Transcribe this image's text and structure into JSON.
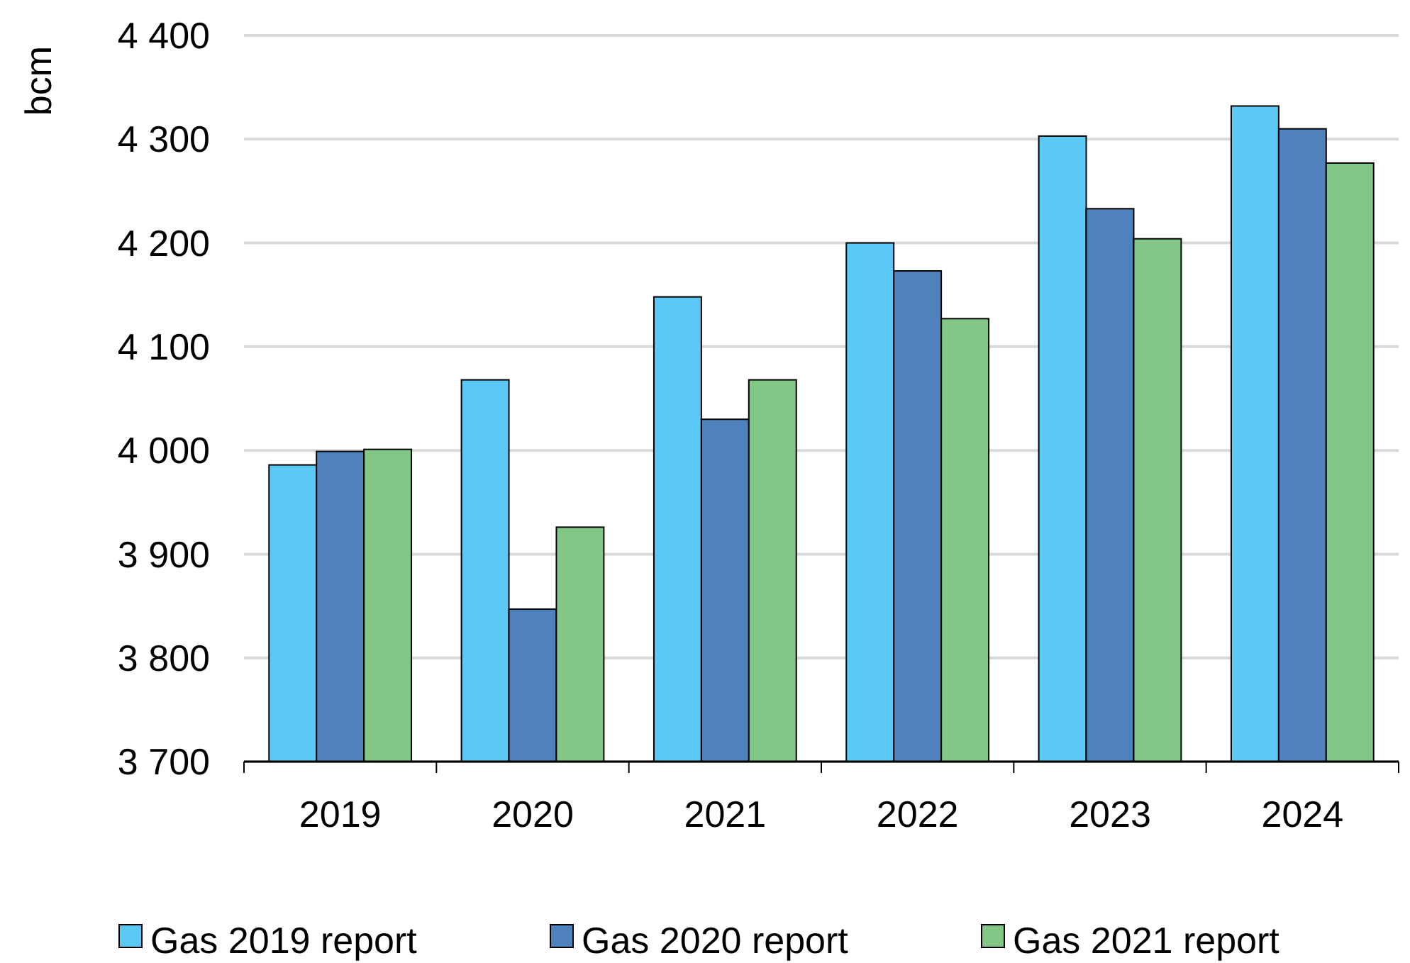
{
  "chart_data": {
    "type": "bar",
    "ylabel": "bcm",
    "categories": [
      "2019",
      "2020",
      "2021",
      "2022",
      "2023",
      "2024"
    ],
    "series": [
      {
        "name": "Gas 2019 report",
        "color": "#5bc8f5",
        "values": [
          3986,
          4068,
          4148,
          4200,
          4303,
          4332
        ]
      },
      {
        "name": "Gas 2020 report",
        "color": "#4f81bd",
        "values": [
          3999,
          3847,
          4030,
          4173,
          4233,
          4310
        ]
      },
      {
        "name": "Gas 2021 report",
        "color": "#82c785",
        "values": [
          4001,
          3926,
          4068,
          4127,
          4204,
          4277
        ]
      }
    ],
    "ylim": [
      3700,
      4400
    ],
    "yticks": [
      {
        "value": 3700,
        "label": "3 700"
      },
      {
        "value": 3800,
        "label": "3 800"
      },
      {
        "value": 3900,
        "label": "3 900"
      },
      {
        "value": 4000,
        "label": "4 000"
      },
      {
        "value": 4100,
        "label": "4 100"
      },
      {
        "value": 4200,
        "label": "4 200"
      },
      {
        "value": 4300,
        "label": "4 300"
      },
      {
        "value": 4400,
        "label": "4 400"
      }
    ],
    "grid": "y",
    "legend": "bottom"
  }
}
